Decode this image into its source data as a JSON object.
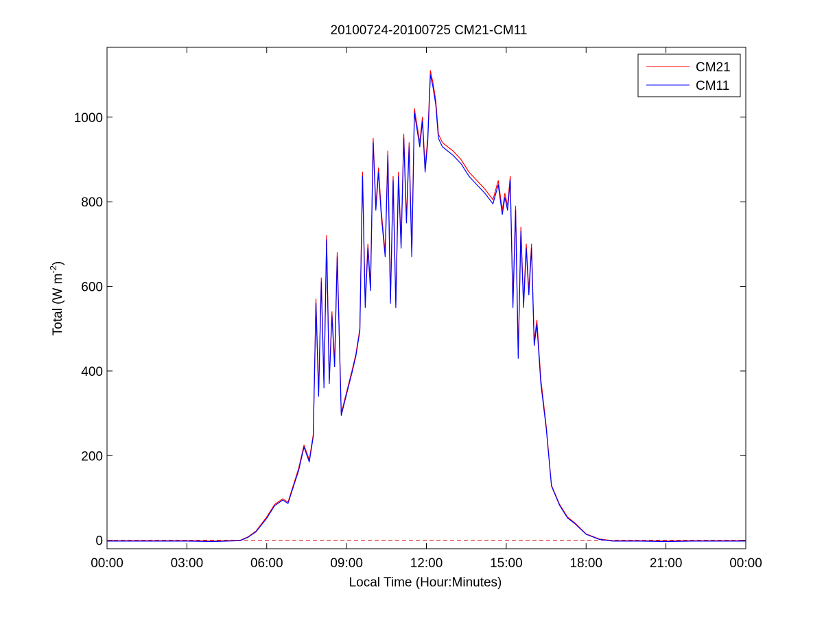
{
  "chart_data": {
    "type": "line",
    "title": "20100724-20100725 CM21-CM11",
    "xlabel": "Local Time (Hour:Minutes)",
    "ylabel_main": "Total (W m",
    "ylabel_exp": "-2",
    "ylabel_close": ")",
    "xlim_hours": [
      0,
      24
    ],
    "ylim": [
      -20,
      1165
    ],
    "x_ticks": [
      {
        "hour": 0,
        "label": "00:00"
      },
      {
        "hour": 3,
        "label": "03:00"
      },
      {
        "hour": 6,
        "label": "06:00"
      },
      {
        "hour": 9,
        "label": "09:00"
      },
      {
        "hour": 12,
        "label": "12:00"
      },
      {
        "hour": 15,
        "label": "15:00"
      },
      {
        "hour": 18,
        "label": "18:00"
      },
      {
        "hour": 21,
        "label": "21:00"
      },
      {
        "hour": 24,
        "label": "00:00"
      }
    ],
    "y_ticks": [
      0,
      200,
      400,
      600,
      800,
      1000
    ],
    "grid": false,
    "legend_position": "top-right",
    "reference_line": {
      "y": 0,
      "color": "#cc0000",
      "style": "dashed"
    },
    "series": [
      {
        "name": "CM21",
        "color": "#ff0000",
        "x_hours": [
          0,
          1,
          2,
          3,
          4,
          5,
          5.3,
          5.6,
          6.0,
          6.3,
          6.6,
          6.8,
          7.0,
          7.2,
          7.4,
          7.6,
          7.75,
          7.85,
          7.95,
          8.05,
          8.15,
          8.25,
          8.35,
          8.45,
          8.55,
          8.65,
          8.8,
          9.0,
          9.2,
          9.35,
          9.5,
          9.6,
          9.7,
          9.8,
          9.9,
          10.0,
          10.1,
          10.2,
          10.3,
          10.45,
          10.55,
          10.65,
          10.75,
          10.85,
          10.95,
          11.05,
          11.15,
          11.25,
          11.35,
          11.45,
          11.55,
          11.65,
          11.75,
          11.85,
          11.95,
          12.05,
          12.15,
          12.25,
          12.35,
          12.45,
          12.6,
          12.8,
          13.0,
          13.3,
          13.6,
          13.9,
          14.2,
          14.5,
          14.7,
          14.85,
          14.95,
          15.05,
          15.15,
          15.25,
          15.35,
          15.45,
          15.55,
          15.65,
          15.75,
          15.85,
          15.95,
          16.05,
          16.15,
          16.3,
          16.5,
          16.7,
          17.0,
          17.3,
          17.6,
          18.0,
          18.5,
          19.0,
          20,
          21,
          22,
          23,
          24
        ],
        "y": [
          -1,
          -1,
          -1,
          -1,
          -2,
          0,
          8,
          22,
          55,
          85,
          98,
          90,
          130,
          170,
          225,
          190,
          250,
          570,
          350,
          620,
          370,
          720,
          380,
          540,
          420,
          680,
          300,
          350,
          400,
          440,
          500,
          870,
          560,
          700,
          600,
          950,
          790,
          880,
          780,
          680,
          920,
          570,
          860,
          560,
          870,
          700,
          960,
          760,
          940,
          680,
          1020,
          980,
          940,
          1000,
          880,
          950,
          1110,
          1080,
          1040,
          960,
          940,
          930,
          920,
          900,
          870,
          850,
          830,
          805,
          850,
          780,
          820,
          790,
          860,
          560,
          790,
          440,
          740,
          560,
          700,
          590,
          700,
          470,
          520,
          380,
          270,
          130,
          85,
          55,
          40,
          15,
          3,
          -1,
          -1,
          -2,
          -1,
          -1,
          -1
        ]
      },
      {
        "name": "CM11",
        "color": "#0000ff",
        "x_hours": [
          0,
          1,
          2,
          3,
          4,
          5,
          5.3,
          5.6,
          6.0,
          6.3,
          6.6,
          6.8,
          7.0,
          7.2,
          7.4,
          7.6,
          7.75,
          7.85,
          7.95,
          8.05,
          8.15,
          8.25,
          8.35,
          8.45,
          8.55,
          8.65,
          8.8,
          9.0,
          9.2,
          9.35,
          9.5,
          9.6,
          9.7,
          9.8,
          9.9,
          10.0,
          10.1,
          10.2,
          10.3,
          10.45,
          10.55,
          10.65,
          10.75,
          10.85,
          10.95,
          11.05,
          11.15,
          11.25,
          11.35,
          11.45,
          11.55,
          11.65,
          11.75,
          11.85,
          11.95,
          12.05,
          12.15,
          12.25,
          12.35,
          12.45,
          12.6,
          12.8,
          13.0,
          13.3,
          13.6,
          13.9,
          14.2,
          14.5,
          14.7,
          14.85,
          14.95,
          15.05,
          15.15,
          15.25,
          15.35,
          15.45,
          15.55,
          15.65,
          15.75,
          15.85,
          15.95,
          16.05,
          16.15,
          16.3,
          16.5,
          16.7,
          17.0,
          17.3,
          17.6,
          18.0,
          18.5,
          19.0,
          20,
          21,
          22,
          23,
          24
        ],
        "y": [
          -2,
          -2,
          -2,
          -2,
          -3,
          -1,
          7,
          20,
          52,
          82,
          95,
          87,
          126,
          165,
          220,
          185,
          245,
          560,
          340,
          610,
          360,
          710,
          370,
          530,
          410,
          670,
          295,
          345,
          395,
          435,
          495,
          860,
          550,
          690,
          590,
          940,
          780,
          870,
          770,
          670,
          910,
          560,
          850,
          550,
          860,
          690,
          950,
          750,
          930,
          670,
          1010,
          970,
          930,
          990,
          870,
          940,
          1100,
          1070,
          1030,
          950,
          930,
          920,
          910,
          890,
          860,
          840,
          820,
          795,
          840,
          770,
          810,
          780,
          850,
          550,
          780,
          430,
          730,
          550,
          690,
          580,
          690,
          460,
          510,
          370,
          265,
          128,
          83,
          53,
          38,
          14,
          2,
          -2,
          -2,
          -3,
          -2,
          -2,
          -2
        ]
      }
    ]
  }
}
